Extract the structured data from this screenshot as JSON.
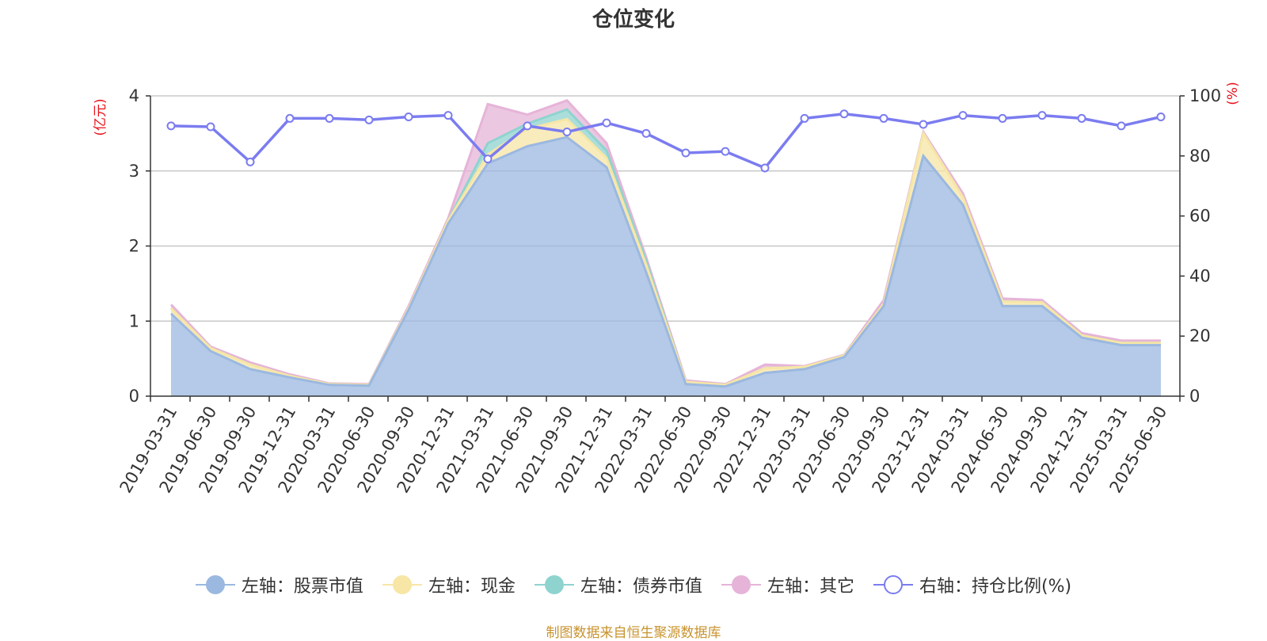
{
  "title": "仓位变化",
  "source_note": "制图数据来自恒生聚源数据库",
  "chart_data": {
    "type": "area",
    "categories": [
      "2019-03-31",
      "2019-06-30",
      "2019-09-30",
      "2019-12-31",
      "2020-03-31",
      "2020-06-30",
      "2020-09-30",
      "2020-12-31",
      "2021-03-31",
      "2021-06-30",
      "2021-09-30",
      "2021-12-31",
      "2022-03-31",
      "2022-06-30",
      "2022-09-30",
      "2022-12-31",
      "2023-03-31",
      "2023-06-30",
      "2023-09-30",
      "2023-12-31",
      "2024-03-31",
      "2024-06-30",
      "2024-09-30",
      "2024-12-31",
      "2025-03-31",
      "2025-06-30"
    ],
    "left_axis": {
      "unit": "(亿元)",
      "ylim": [
        0,
        4
      ],
      "ticks": [
        0,
        1,
        2,
        3,
        4
      ]
    },
    "right_axis": {
      "unit": "(%)",
      "ylim": [
        0,
        100
      ],
      "ticks": [
        0,
        20,
        40,
        60,
        80,
        100
      ]
    },
    "grid": true,
    "legend_position": "bottom",
    "series": [
      {
        "name": "左轴：股票市值",
        "type": "stacked-area",
        "axis": "left",
        "color": "#9bb8e0",
        "values": [
          1.1,
          0.6,
          0.36,
          0.25,
          0.15,
          0.14,
          1.15,
          2.3,
          3.1,
          3.33,
          3.45,
          3.05,
          1.65,
          0.16,
          0.13,
          0.31,
          0.36,
          0.52,
          1.2,
          3.2,
          2.55,
          1.2,
          1.2,
          0.78,
          0.68,
          0.68
        ]
      },
      {
        "name": "左轴：现金",
        "type": "stacked-area",
        "axis": "left",
        "color": "#f7e6a6",
        "values": [
          0.07,
          0.04,
          0.06,
          0.02,
          0.01,
          0.01,
          0.02,
          0.04,
          0.12,
          0.23,
          0.24,
          0.12,
          0.1,
          0.03,
          0.02,
          0.06,
          0.03,
          0.02,
          0.03,
          0.3,
          0.1,
          0.06,
          0.05,
          0.03,
          0.03,
          0.03
        ]
      },
      {
        "name": "左轴：债券市值",
        "type": "stacked-area",
        "axis": "left",
        "color": "#8fd3cf",
        "values": [
          0,
          0,
          0,
          0,
          0,
          0,
          0,
          0,
          0.15,
          0.07,
          0.13,
          0.1,
          0.05,
          0,
          0,
          0,
          0,
          0,
          0,
          0,
          0,
          0,
          0,
          0,
          0,
          0
        ]
      },
      {
        "name": "左轴：其它",
        "type": "stacked-area",
        "axis": "left",
        "color": "#e6b4d8",
        "values": [
          0.05,
          0.02,
          0.03,
          0.02,
          0.01,
          0.01,
          0.03,
          0.03,
          0.52,
          0.12,
          0.12,
          0.1,
          0.05,
          0.02,
          0.01,
          0.05,
          0.01,
          0.01,
          0.05,
          0.02,
          0.05,
          0.04,
          0.03,
          0.03,
          0.03,
          0.03
        ]
      },
      {
        "name": "右轴：持仓比例(%)",
        "type": "line",
        "axis": "right",
        "color": "#7b7cf0",
        "values": [
          90,
          89.7,
          78,
          92.5,
          92.5,
          92,
          93,
          93.5,
          79,
          90,
          88,
          91,
          87.5,
          81,
          81.5,
          76,
          92.5,
          94,
          92.5,
          90.5,
          93.5,
          92.5,
          93.5,
          92.5,
          90,
          93
        ]
      }
    ]
  }
}
